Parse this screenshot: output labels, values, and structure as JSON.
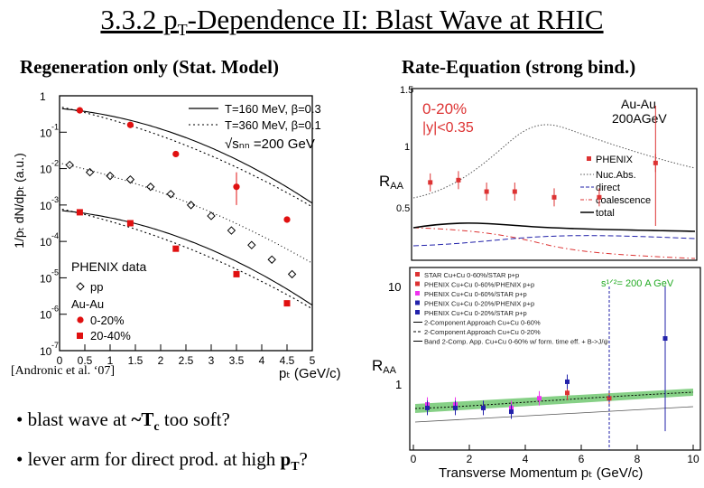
{
  "title": {
    "pre": "3.3.2  p",
    "sub": "T",
    "post": "-Dependence II: Blast Wave at RHIC"
  },
  "left": {
    "subtitle": "Regeneration only (Stat. Model)",
    "ylabel": "1/pₜ dN/dpₜ (a.u.)",
    "xlabel": "pₜ (GeV/c)",
    "legend_lines": [
      "T=160 MeV, β=0.3",
      "T=360 MeV, β=0.1",
      "√sₙₙ =200 GeV"
    ],
    "data_legend": [
      "PHENIX data",
      "pp",
      "Au-Au",
      "0-20%",
      "20-40%"
    ],
    "citation": "[Andronic et al. ‘07]",
    "x_ticks": [
      "0",
      "0.5",
      "1",
      "1.5",
      "2",
      "2.5",
      "3",
      "3.5",
      "4",
      "4.5",
      "5"
    ],
    "y_ticks": [
      "1",
      "10",
      "10",
      "10",
      "10",
      "10",
      "10",
      "10"
    ],
    "y_exp": [
      "",
      "-1",
      "-2",
      "-3",
      "-4",
      "-5",
      "-6",
      "-7"
    ]
  },
  "right": {
    "subtitle": "Rate-Equation (strong bind.)",
    "top_panel": {
      "centrality": "0-20%",
      "rapidity": "|y|<0.35",
      "system": "Au-Au",
      "energy": "200AGeV",
      "ylabel": "R",
      "ylabel_sub": "AA",
      "legend": [
        "PHENIX",
        "Nuc.Abs.",
        "direct",
        "coalescence",
        "total"
      ],
      "y_ticks": [
        "1.5",
        "1",
        "0.5"
      ]
    },
    "bottom_panel": {
      "ylabel": "R",
      "ylabel_sub": "AA",
      "xlabel": "Transverse Momentum pₜ (GeV/c)",
      "energy_label": "s¹ᐟ²= 200 A GeV",
      "legend": [
        "STAR     Cu+Cu 0-60%/STAR p+p",
        "PHENIX Cu+Cu 0-60%/PHENIX p+p",
        "PHENIX Cu+Cu 0-60%/STAR p+p",
        "PHENIX Cu+Cu 0-20%/PHENIX p+p",
        "PHENIX Cu+Cu 0-20%/STAR p+p",
        "2-Component Approach Cu+Cu 0-60%",
        "2-Component Approach Cu+Cu 0-20%",
        "Band  2-Comp. App. Cu+Cu 0-60% w/ form. time eff. + B->J/ψ"
      ],
      "x_ticks": [
        "0",
        "2",
        "4",
        "6",
        "8",
        "10"
      ],
      "y_ticks": [
        "10",
        "1"
      ]
    }
  },
  "bullets": [
    {
      "pre": "• blast wave at ",
      "bold": "~T",
      "bold_sub": "c",
      "post": " too soft?"
    },
    {
      "pre": "• lever arm for direct prod. at high ",
      "bold": "p",
      "bold_sub": "T",
      "post": "?"
    }
  ],
  "chart_data": [
    {
      "type": "scatter",
      "title": "Regeneration only (Stat. Model)",
      "xlabel": "pT (GeV/c)",
      "ylabel": "1/pT dN/dpT (a.u.)",
      "yscale": "log",
      "xlim": [
        0,
        5
      ],
      "ylim_log10": [
        -7,
        0
      ],
      "series": [
        {
          "name": "0-20%",
          "marker": "filled-circle",
          "x": [
            0.4,
            1.4,
            2.3,
            3.5,
            4.5
          ],
          "log10_y": [
            -0.4,
            -0.8,
            -1.6,
            -2.5,
            -3.4
          ]
        },
        {
          "name": "pp",
          "marker": "open-diamond",
          "x": [
            0.2,
            0.6,
            1.0,
            1.4,
            1.8,
            2.2,
            2.6,
            3.0,
            3.4,
            3.8,
            4.2,
            4.6
          ],
          "log10_y": [
            -1.9,
            -2.1,
            -2.2,
            -2.3,
            -2.5,
            -2.7,
            -3.0,
            -3.3,
            -3.7,
            -4.1,
            -4.5,
            -4.9
          ]
        },
        {
          "name": "20-40%",
          "marker": "filled-square",
          "x": [
            0.4,
            1.4,
            2.3,
            3.5,
            4.5
          ],
          "log10_y": [
            -3.2,
            -3.5,
            -4.2,
            -4.9,
            -5.7
          ]
        }
      ]
    },
    {
      "type": "scatter",
      "title": "Rate-Equation, Au-Au 200AGeV 0-20% |y|<0.35",
      "ylabel": "RAA",
      "ylim": [
        0,
        1.5
      ],
      "series": [
        {
          "name": "PHENIX",
          "x": [
            0.3,
            0.8,
            1.3,
            1.8,
            2.5,
            3.3,
            4.3
          ],
          "y": [
            0.68,
            0.7,
            0.6,
            0.6,
            0.55,
            0.55,
            0.85
          ]
        }
      ]
    },
    {
      "type": "scatter",
      "title": "Cu+Cu s^1/2 = 200 A GeV",
      "xlabel": "Transverse Momentum pT (GeV/c)",
      "ylabel": "RAA",
      "xlim": [
        0,
        10
      ],
      "series": [
        {
          "name": "STAR Cu+Cu 0-60%/STAR p+p",
          "x": [
            5.5,
            7.0
          ],
          "y": [
            0.85,
            0.75
          ]
        },
        {
          "name": "PHENIX Cu+Cu 0-60%/PHENIX p+p",
          "x": [
            0.5,
            1.5,
            2.5,
            3.5,
            4.5
          ],
          "y": [
            0.65,
            0.65,
            0.6,
            0.6,
            0.75
          ]
        },
        {
          "name": "PHENIX Cu+Cu 0-20%/STAR p+p",
          "x": [
            0.5,
            1.5,
            2.5,
            3.5,
            5.5,
            9.0
          ],
          "y": [
            0.6,
            0.6,
            0.6,
            0.55,
            1.1,
            3.0
          ]
        }
      ]
    }
  ]
}
